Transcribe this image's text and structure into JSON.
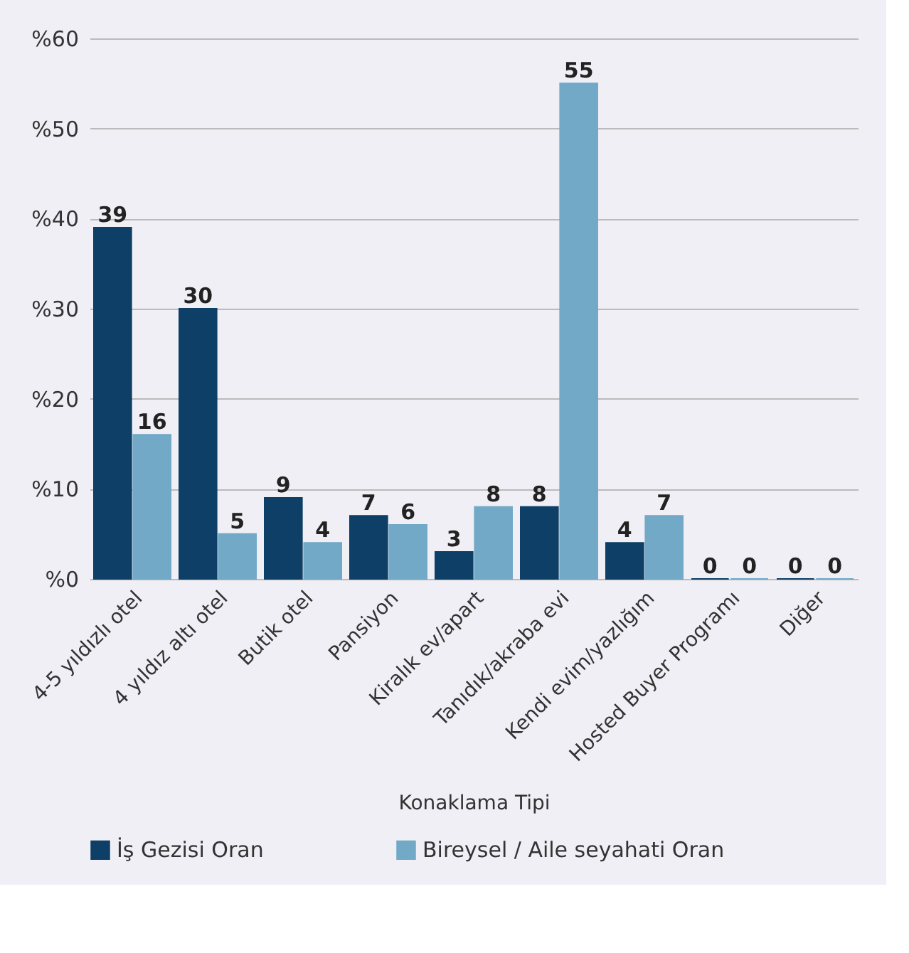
{
  "chart_data": {
    "type": "bar",
    "xlabel": "Konaklama Tipi",
    "categories": [
      "4-5 yıldızlı otel",
      "4 yıldız altı otel",
      "Butik otel",
      "Pansiyon",
      "Kiralık ev/apart",
      "Tanıdık/akraba evi",
      "Kendi evim/yazlığım",
      "Hosted Buyer Programı",
      "Diğer"
    ],
    "series": [
      {
        "name": "İş Gezisi Oran",
        "color": "#0e3f66",
        "values": [
          39,
          30,
          9,
          7,
          3,
          8,
          4,
          0,
          0
        ]
      },
      {
        "name": "Bireysel / Aile seyahati Oran",
        "color": "#72a9c7",
        "values": [
          16,
          5,
          4,
          6,
          8,
          55,
          7,
          0,
          0
        ]
      }
    ],
    "ylim": [
      0,
      60
    ],
    "yticks": [
      {
        "value": 0,
        "label": "%0"
      },
      {
        "value": 10,
        "label": "%10"
      },
      {
        "value": 20,
        "label": "%20"
      },
      {
        "value": 30,
        "label": "%30"
      },
      {
        "value": 40,
        "label": "%40"
      },
      {
        "value": 50,
        "label": "%50"
      },
      {
        "value": 60,
        "label": "%60"
      }
    ],
    "grid": "y",
    "legend": "bottom",
    "data_labels": true
  }
}
